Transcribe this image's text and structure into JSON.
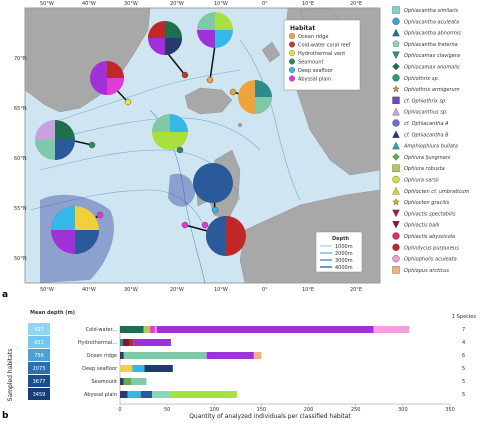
{
  "panel_a": {
    "letter": "a",
    "top_lon_labels": [
      "50°W",
      "40°W",
      "30°W",
      "20°W",
      "10°W",
      "0°",
      "10°E",
      "20°E"
    ],
    "bottom_lon_labels": [
      "50°W",
      "40°W",
      "30°W",
      "20°W",
      "10°W",
      "0°",
      "10°E",
      "20°E"
    ],
    "lat_labels": [
      "70°N",
      "65°N",
      "60°N",
      "55°N",
      "50°N"
    ],
    "habitat_legend": {
      "title": "Habitat",
      "items": [
        {
          "label": "Ocean ridge",
          "color": "#f0a23c"
        },
        {
          "label": "Cold-water coral reef",
          "color": "#c0392b"
        },
        {
          "label": "Hydrothermal vent",
          "color": "#f2e03a"
        },
        {
          "label": "Seamount",
          "color": "#2e8b57"
        },
        {
          "label": "Deep seafloor",
          "color": "#33b8e8"
        },
        {
          "label": "Abyssal plain",
          "color": "#e23ad6"
        }
      ]
    },
    "depth_legend": {
      "title": "Depth",
      "items": [
        "1000m",
        "2000m",
        "3000m",
        "4000m"
      ]
    }
  },
  "species_legend": [
    {
      "label": "Ophiacantha similaris",
      "color": "#7fd6c8",
      "icon": "square-icon"
    },
    {
      "label": "Ophiacantha aculeata",
      "color": "#3fa0c8",
      "icon": "circle-icon"
    },
    {
      "label": "Ophiacantha abnormis",
      "color": "#2e6f8e",
      "icon": "triangle-icon"
    },
    {
      "label": "Ophiacantha fraterna",
      "color": "#88d8b8",
      "icon": "pentagon-icon"
    },
    {
      "label": "Ophiocamax clavigera",
      "color": "#2a8c8c",
      "icon": "triangle-down-icon"
    },
    {
      "label": "Ophiocamax anomalis",
      "color": "#1f6e4e",
      "icon": "diamond-icon"
    },
    {
      "label": "Ophiothrix sp.",
      "color": "#2d9a7a",
      "icon": "circle-icon"
    },
    {
      "label": "Ophiothrix armigerum",
      "color": "#b8a030",
      "icon": "star-icon"
    },
    {
      "label": "cf. Ophiothrix sp.",
      "color": "#6a4cc0",
      "icon": "square-icon"
    },
    {
      "label": "Ophiacanthus sp.",
      "color": "#c9a0e0",
      "icon": "triangle-icon"
    },
    {
      "label": "cf. Ophiacantha A",
      "color": "#7a6ad0",
      "icon": "circle-icon"
    },
    {
      "label": "cf. Ophiacantha B",
      "color": "#2a3a6a",
      "icon": "triangle-icon"
    },
    {
      "label": "Amphiophiura bullata",
      "color": "#33a0a0",
      "icon": "triangle-icon"
    },
    {
      "label": "Ophiura ljungmani",
      "color": "#6aa84f",
      "icon": "diamond-icon"
    },
    {
      "label": "Ophiura robusta",
      "color": "#b0c860",
      "icon": "square-icon"
    },
    {
      "label": "Ophiura sarsii",
      "color": "#d0e040",
      "icon": "circle-icon"
    },
    {
      "label": "Ophiocten cf. umbraticum",
      "color": "#c8d830",
      "icon": "triangle-icon"
    },
    {
      "label": "Ophiocten gracilis",
      "color": "#c0c020",
      "icon": "star-icon"
    },
    {
      "label": "Ophiactis spectabilis",
      "color": "#a02040",
      "icon": "triangle-down-icon"
    },
    {
      "label": "Ophiactis balli",
      "color": "#8a1a2a",
      "icon": "triangle-down-icon"
    },
    {
      "label": "Ophiactis abyssicola",
      "color": "#e03060",
      "icon": "circle-icon"
    },
    {
      "label": "Ophiolycus purpureus",
      "color": "#c02828",
      "icon": "circle-icon"
    },
    {
      "label": "Ophiopholis aculeata",
      "color": "#e8a0d0",
      "icon": "circle-icon"
    },
    {
      "label": "Ophiopus arcticus",
      "color": "#f0b080",
      "icon": "square-icon"
    }
  ],
  "panel_b": {
    "letter": "b",
    "mean_depth_title": "Mean depth (m)",
    "species_title": "Σ Species",
    "y_axis_title": "Sampled habitats",
    "x_axis_title": "Quantity of analyzed individuals per classified habitat"
  },
  "chart_data": {
    "type": "bar",
    "orientation": "horizontal-stacked",
    "xlabel": "Quantity of analyzed individuals per classified habitat",
    "ylabel": "Sampled habitats",
    "xlim": [
      0,
      350
    ],
    "xticks": [
      0,
      50,
      100,
      150,
      200,
      250,
      300,
      350
    ],
    "categories": [
      "Cold-water...",
      "Hydrothermal...",
      "Ocean ridge",
      "Deep seafloor",
      "Seamount",
      "Abyssal plain"
    ],
    "mean_depth": [
      "427",
      "651",
      "756",
      "2073",
      "3677",
      "3459"
    ],
    "species_count": [
      "7",
      "4",
      "6",
      "5",
      "5",
      "5"
    ],
    "stacks": [
      [
        {
          "color": "#1f6e4e",
          "value": 25
        },
        {
          "color": "#b0c860",
          "value": 7
        },
        {
          "color": "#e23ad6",
          "value": 5
        },
        {
          "color": "#c9a0e0",
          "value": 2
        },
        {
          "color": "#a030d8",
          "value": 230
        },
        {
          "color": "#f0a0e0",
          "value": 38
        }
      ],
      [
        {
          "color": "#2a8c8c",
          "value": 3
        },
        {
          "color": "#7a1a3a",
          "value": 7
        },
        {
          "color": "#c02828",
          "value": 4
        },
        {
          "color": "#a030d8",
          "value": 40
        }
      ],
      [
        {
          "color": "#2a3a6a",
          "value": 4
        },
        {
          "color": "#7fc8a8",
          "value": 88
        },
        {
          "color": "#a030d8",
          "value": 50
        },
        {
          "color": "#f0b080",
          "value": 8
        }
      ],
      [
        {
          "color": "#f2d03a",
          "value": 13
        },
        {
          "color": "#33b8e8",
          "value": 13
        },
        {
          "color": "#1e3a6e",
          "value": 30
        }
      ],
      [
        {
          "color": "#2a3a6a",
          "value": 4
        },
        {
          "color": "#6aa84f",
          "value": 8
        },
        {
          "color": "#7fc8a8",
          "value": 16
        }
      ],
      [
        {
          "color": "#2a3a6a",
          "value": 8
        },
        {
          "color": "#33b8e8",
          "value": 14
        },
        {
          "color": "#2a5a9a",
          "value": 12
        },
        {
          "color": "#88d8b8",
          "value": 20
        },
        {
          "color": "#a8e040",
          "value": 70
        }
      ]
    ]
  }
}
